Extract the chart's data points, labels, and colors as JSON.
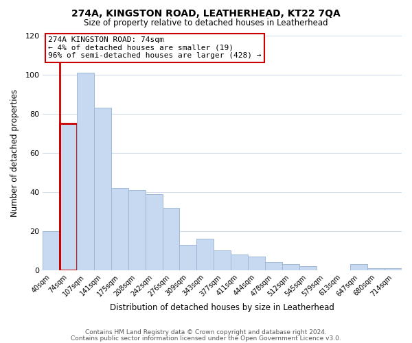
{
  "title": "274A, KINGSTON ROAD, LEATHERHEAD, KT22 7QA",
  "subtitle": "Size of property relative to detached houses in Leatherhead",
  "xlabel": "Distribution of detached houses by size in Leatherhead",
  "ylabel": "Number of detached properties",
  "bar_labels": [
    "40sqm",
    "74sqm",
    "107sqm",
    "141sqm",
    "175sqm",
    "208sqm",
    "242sqm",
    "276sqm",
    "309sqm",
    "343sqm",
    "377sqm",
    "411sqm",
    "444sqm",
    "478sqm",
    "512sqm",
    "545sqm",
    "579sqm",
    "613sqm",
    "647sqm",
    "680sqm",
    "714sqm"
  ],
  "bar_values": [
    20,
    75,
    101,
    83,
    42,
    41,
    39,
    32,
    13,
    16,
    10,
    8,
    7,
    4,
    3,
    2,
    0,
    0,
    3,
    1,
    1
  ],
  "bar_color": "#c6d9f0",
  "bar_edge_color": "#a0b8d8",
  "highlight_bar_index": 1,
  "highlight_outline_color": "#cc0000",
  "ylim": [
    0,
    120
  ],
  "yticks": [
    0,
    20,
    40,
    60,
    80,
    100,
    120
  ],
  "annotation_title": "274A KINGSTON ROAD: 74sqm",
  "annotation_line1": "← 4% of detached houses are smaller (19)",
  "annotation_line2": "96% of semi-detached houses are larger (428) →",
  "annotation_box_color": "#ffffff",
  "annotation_outline_color": "#cc0000",
  "footer_line1": "Contains HM Land Registry data © Crown copyright and database right 2024.",
  "footer_line2": "Contains public sector information licensed under the Open Government Licence v3.0.",
  "background_color": "#ffffff",
  "grid_color": "#d0dce8"
}
